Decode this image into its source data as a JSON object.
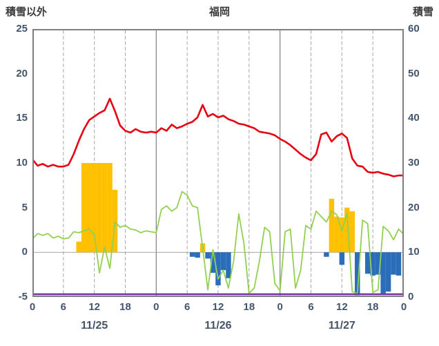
{
  "header": {
    "left_axis_title": "積雪以外",
    "station": "福岡",
    "right_axis_title": "積雪"
  },
  "chart_data": {
    "type": "line+bar",
    "title": "福岡",
    "hours_max": 72,
    "yaxis_left": {
      "label": "積雪以外",
      "min": -5,
      "max": 25,
      "ticks": [
        25,
        20,
        15,
        10,
        5,
        0,
        -5
      ]
    },
    "yaxis_right": {
      "label": "積雪",
      "min": 0,
      "max": 60,
      "ticks": [
        60,
        50,
        40,
        30,
        20,
        10,
        0
      ]
    },
    "xticks": [
      {
        "h": 0,
        "label": "0"
      },
      {
        "h": 6,
        "label": "6"
      },
      {
        "h": 12,
        "label": "12"
      },
      {
        "h": 18,
        "label": "18"
      },
      {
        "h": 24,
        "label": "0"
      },
      {
        "h": 30,
        "label": "6"
      },
      {
        "h": 36,
        "label": "12"
      },
      {
        "h": 42,
        "label": "18"
      },
      {
        "h": 48,
        "label": "0"
      },
      {
        "h": 54,
        "label": "6"
      },
      {
        "h": 60,
        "label": "12"
      },
      {
        "h": 66,
        "label": "18"
      },
      {
        "h": 72,
        "label": "0"
      }
    ],
    "days": [
      {
        "label": "11/25",
        "center_h": 12
      },
      {
        "label": "11/26",
        "center_h": 36
      },
      {
        "label": "11/27",
        "center_h": 60
      }
    ],
    "grid": {
      "vlines_dashed": [
        6,
        12,
        18,
        30,
        36,
        42,
        54,
        60,
        66
      ],
      "vlines_solid": [
        24,
        48
      ],
      "zero_line": 0
    },
    "colors": {
      "frame": "#7F7F7F",
      "grid_solid": "#7F7F7F",
      "grid_dashed": "#A6A6A6",
      "tick_text": "#44546A",
      "title_text": "#3B3B3B"
    },
    "series": [
      {
        "name": "red-line",
        "type": "line",
        "axis": "left",
        "color": "#E60012",
        "width": 2.6,
        "values": [
          10.4,
          9.7,
          9.9,
          9.6,
          9.8,
          9.6,
          9.6,
          9.8,
          11.0,
          12.5,
          13.8,
          14.8,
          15.2,
          15.6,
          15.9,
          17.2,
          15.8,
          14.2,
          13.6,
          13.4,
          13.8,
          13.5,
          13.4,
          13.5,
          13.4,
          13.9,
          13.6,
          14.3,
          13.9,
          14.1,
          14.4,
          14.6,
          15.1,
          16.5,
          15.2,
          15.5,
          15.1,
          15.3,
          14.9,
          14.7,
          14.4,
          14.3,
          14.1,
          13.9,
          13.5,
          13.4,
          13.3,
          13.1,
          12.7,
          12.4,
          12.0,
          11.5,
          11.0,
          10.6,
          10.3,
          11.0,
          13.2,
          13.4,
          12.4,
          13.0,
          13.3,
          12.8,
          10.5,
          9.7,
          9.6,
          9.0,
          8.9,
          9.0,
          8.8,
          8.7,
          8.5,
          8.6,
          8.6
        ]
      },
      {
        "name": "green-line",
        "type": "line",
        "axis": "left",
        "color": "#92D050",
        "width": 1.8,
        "values": [
          1.5,
          2.1,
          1.9,
          2.1,
          1.6,
          1.8,
          1.5,
          1.6,
          2.3,
          2.2,
          2.4,
          2.6,
          2.0,
          -2.3,
          0.6,
          -1.8,
          3.4,
          2.8,
          3.0,
          2.6,
          2.5,
          2.2,
          2.4,
          2.3,
          2.2,
          4.8,
          5.2,
          4.6,
          5.0,
          6.8,
          6.4,
          5.2,
          5.0,
          0.5,
          -4.2,
          0.3,
          -3.0,
          -2.0,
          -4.0,
          -1.0,
          4.3,
          1.0,
          -4.6,
          -4.0,
          -1.0,
          2.8,
          2.3,
          -3.5,
          -4.3,
          2.3,
          2.6,
          -4.0,
          -2.0,
          3.0,
          2.6,
          4.6,
          4.0,
          3.4,
          4.6,
          4.2,
          2.4,
          4.4,
          -4.4,
          -4.6,
          3.6,
          3.2,
          -4.5,
          -4.2,
          2.9,
          2.4,
          1.4,
          2.6,
          2.0
        ]
      },
      {
        "name": "orange-bars",
        "type": "bar",
        "axis": "left",
        "color": "#FFC000",
        "points": [
          {
            "h": 9,
            "v": 1.2
          },
          {
            "h": 10,
            "v": 10
          },
          {
            "h": 11,
            "v": 10
          },
          {
            "h": 12,
            "v": 10
          },
          {
            "h": 13,
            "v": 10
          },
          {
            "h": 14,
            "v": 10
          },
          {
            "h": 15,
            "v": 10
          },
          {
            "h": 16,
            "v": 7
          },
          {
            "h": 33,
            "v": 1.0
          },
          {
            "h": 58,
            "v": 6
          },
          {
            "h": 59,
            "v": 4
          },
          {
            "h": 60,
            "v": 3.9
          },
          {
            "h": 61,
            "v": 5
          },
          {
            "h": 62,
            "v": 4.6
          }
        ]
      },
      {
        "name": "blue-bars",
        "type": "bar",
        "axis": "left",
        "color": "#2A6EBB",
        "points": [
          {
            "h": 31,
            "v": -0.5
          },
          {
            "h": 32,
            "v": -0.6
          },
          {
            "h": 34,
            "v": -0.7
          },
          {
            "h": 35,
            "v": -2.3
          },
          {
            "h": 36,
            "v": -3.7
          },
          {
            "h": 37,
            "v": -2.0
          },
          {
            "h": 38,
            "v": -2.9
          },
          {
            "h": 57,
            "v": -0.5
          },
          {
            "h": 60,
            "v": -1.4
          },
          {
            "h": 63,
            "v": -4.8
          },
          {
            "h": 65,
            "v": -2.4
          },
          {
            "h": 66,
            "v": -2.6
          },
          {
            "h": 67,
            "v": -2.5
          },
          {
            "h": 68,
            "v": -4.6
          },
          {
            "h": 69,
            "v": -4.4
          },
          {
            "h": 70,
            "v": -2.5
          },
          {
            "h": 71,
            "v": -2.6
          }
        ]
      },
      {
        "name": "purple-line",
        "type": "line",
        "axis": "right",
        "color": "#7030A0",
        "width": 2.4,
        "constant_right": 0
      }
    ]
  }
}
